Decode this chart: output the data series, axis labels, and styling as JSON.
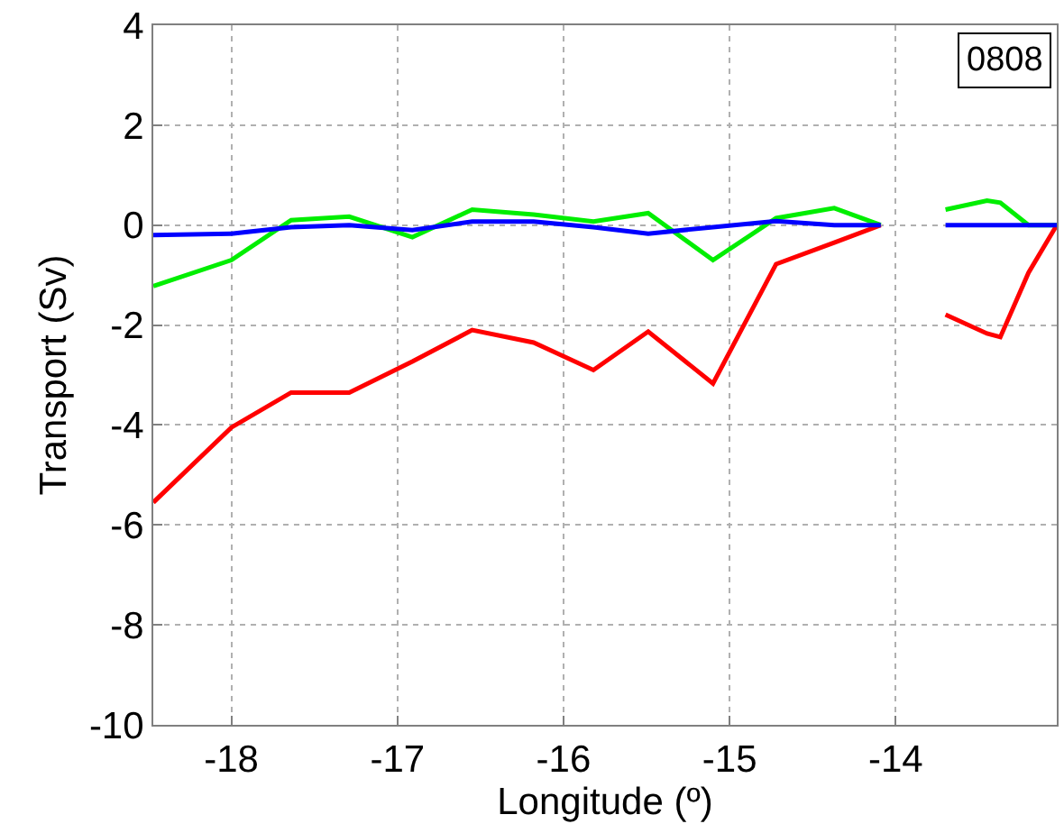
{
  "chart_data": {
    "type": "line",
    "xlabel": "Longitude (º)",
    "ylabel": "Transport (Sv)",
    "annotations": [
      "0808"
    ],
    "x": [
      -18.47,
      -18,
      -17.64,
      -17.29,
      -16.91,
      -16.55,
      -16.18,
      -15.82,
      -15.49,
      -15.1,
      -14.72,
      -14.37,
      -14.09,
      -13.9,
      -13.7,
      -13.45,
      -13.37,
      -13.2,
      -13.03
    ],
    "series": [
      {
        "color": "#00ee00",
        "values": [
          -1.22,
          -0.7,
          0.1,
          0.17,
          -0.24,
          0.31,
          0.21,
          0.07,
          0.24,
          -0.7,
          0.14,
          0.34,
          0,
          null,
          0.31,
          0.49,
          0.45,
          0,
          0
        ]
      },
      {
        "color": "#ff0000",
        "values": [
          -5.55,
          -4.05,
          -3.35,
          -3.35,
          -2.73,
          -2.1,
          -2.35,
          -2.9,
          -2.13,
          -3.17,
          -0.78,
          -0.35,
          0,
          null,
          -1.79,
          -2.17,
          -2.24,
          -0.95,
          0
        ]
      },
      {
        "color": "#0000ff",
        "values": [
          -0.2,
          -0.17,
          -0.04,
          0,
          -0.1,
          0.07,
          0.07,
          -0.04,
          -0.17,
          -0.04,
          0.08,
          0,
          0,
          null,
          0,
          0,
          0,
          0,
          0
        ]
      }
    ],
    "xlim": [
      -18.47,
      -13.03
    ],
    "ylim": [
      -10,
      4
    ],
    "xticks": [
      -18,
      -17,
      -16,
      -15,
      -14
    ],
    "yticks": [
      -10,
      -8,
      -6,
      -4,
      -2,
      0,
      2,
      4
    ],
    "grid": true,
    "marker": "none",
    "line_style": "solid"
  }
}
